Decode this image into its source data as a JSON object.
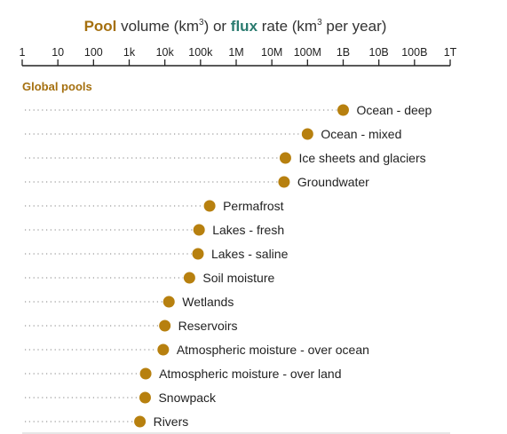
{
  "title": {
    "pool_word": "Pool",
    "part1": " volume (km",
    "sup": "3",
    "part2": ") or ",
    "flux_word": "flux",
    "part3": " rate (km",
    "part4": " per year)"
  },
  "colors": {
    "pool": "#b7800f",
    "pool_text": "#a5700f",
    "flux": "#2a7b6f",
    "leader": "#9a9a9a"
  },
  "chart_data": {
    "type": "scatter",
    "x_scale": "log10",
    "xlim": [
      1,
      1000000000000
    ],
    "x_ticks": [
      {
        "value": 1,
        "label": "1"
      },
      {
        "value": 10,
        "label": "10"
      },
      {
        "value": 100,
        "label": "100"
      },
      {
        "value": 1000,
        "label": "1k"
      },
      {
        "value": 10000,
        "label": "10k"
      },
      {
        "value": 100000,
        "label": "100k"
      },
      {
        "value": 1000000,
        "label": "1M"
      },
      {
        "value": 10000000,
        "label": "10M"
      },
      {
        "value": 100000000,
        "label": "100M"
      },
      {
        "value": 1000000000,
        "label": "1B"
      },
      {
        "value": 10000000000,
        "label": "10B"
      },
      {
        "value": 100000000000,
        "label": "100B"
      },
      {
        "value": 1000000000000,
        "label": "1T"
      }
    ],
    "grid": false,
    "section": "Global pools",
    "series": [
      {
        "name": "Global pools",
        "points": [
          {
            "label": "Ocean - deep",
            "x": 1000000000
          },
          {
            "label": "Ocean - mixed",
            "x": 100000000
          },
          {
            "label": "Ice sheets and glaciers",
            "x": 24000000
          },
          {
            "label": "Groundwater",
            "x": 22000000
          },
          {
            "label": "Permafrost",
            "x": 180000
          },
          {
            "label": "Lakes - fresh",
            "x": 91000
          },
          {
            "label": "Lakes - saline",
            "x": 85000
          },
          {
            "label": "Soil moisture",
            "x": 49000
          },
          {
            "label": "Wetlands",
            "x": 13000
          },
          {
            "label": "Reservoirs",
            "x": 10000
          },
          {
            "label": "Atmospheric moisture - over ocean",
            "x": 9000
          },
          {
            "label": "Atmospheric moisture - over land",
            "x": 2900
          },
          {
            "label": "Snowpack",
            "x": 2800
          },
          {
            "label": "Rivers",
            "x": 2000
          }
        ]
      }
    ]
  }
}
